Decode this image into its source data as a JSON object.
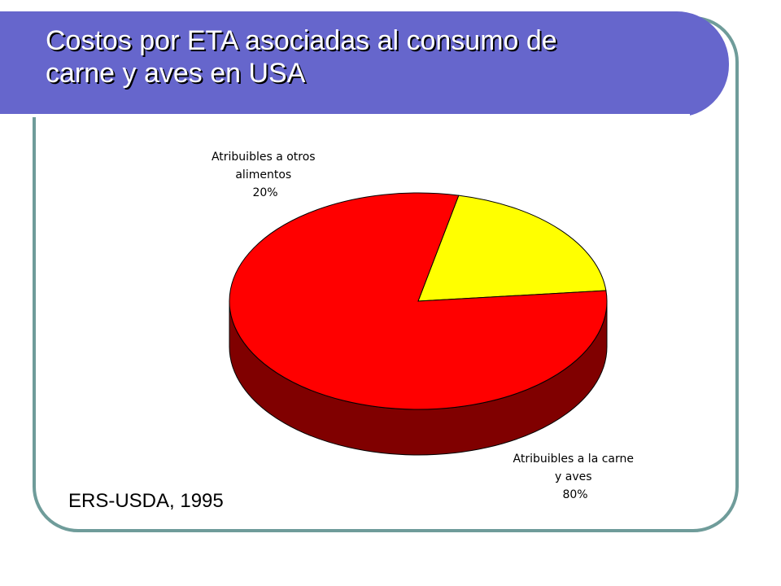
{
  "slide": {
    "title_line1": "Costos por ETA asociadas al consumo de",
    "title_line2": "carne y aves en USA",
    "source": "ERS-USDA, 1995"
  },
  "colors": {
    "banner": "#6666cc",
    "frame": "#6f9c9a"
  },
  "chart_data": {
    "type": "pie",
    "style": "3d",
    "slices": [
      {
        "name_lines": [
          "Atribuibles a otros",
          "alimentos"
        ],
        "value": 20,
        "value_label": "20%",
        "color": "#ffff00",
        "side_color": "#808000"
      },
      {
        "name_lines": [
          "Atribuibles a la carne",
          "y aves"
        ],
        "value": 80,
        "value_label": "80%",
        "color": "#ff0000",
        "side_color": "#800000"
      }
    ]
  }
}
